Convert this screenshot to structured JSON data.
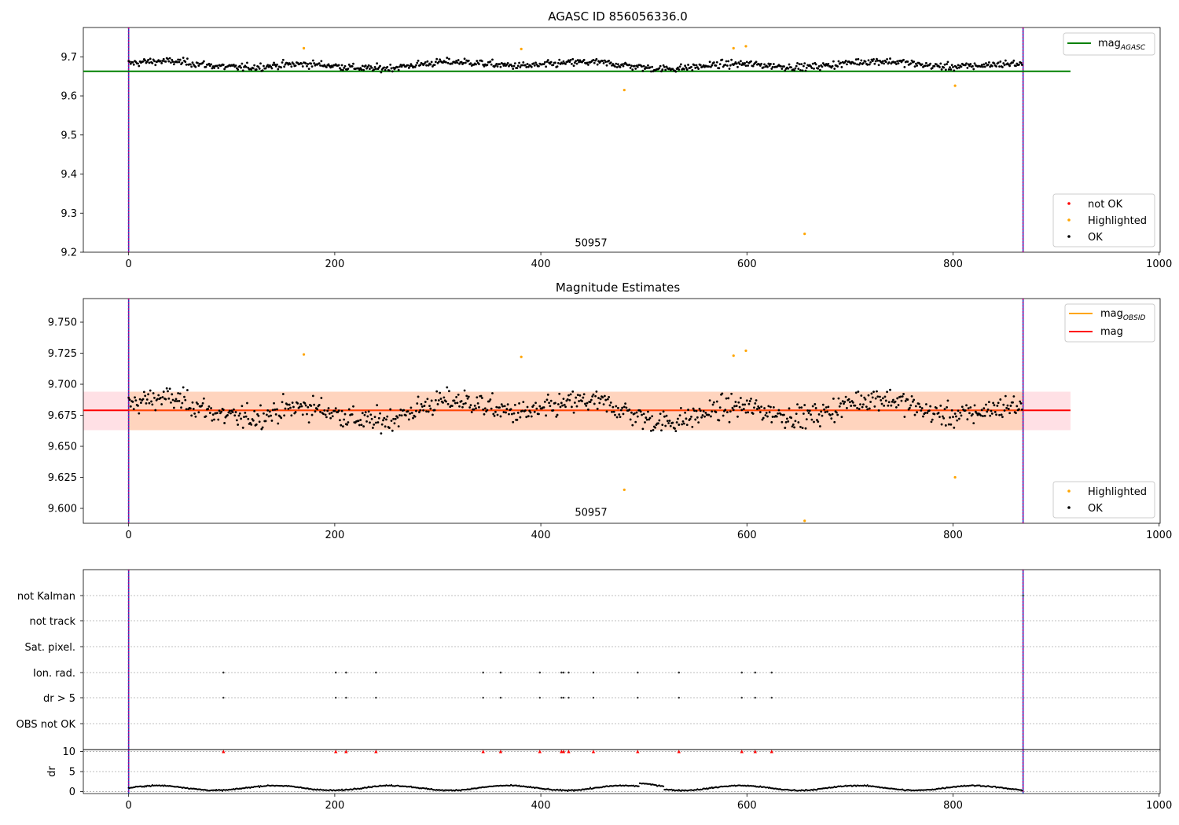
{
  "chart_data": [
    {
      "type": "scatter",
      "title": "AGASC ID 856056336.0",
      "xlim": [
        -44,
        1001
      ],
      "ylim": [
        9.2,
        9.775
      ],
      "xticks": [
        "0",
        "200",
        "400",
        "600",
        "800",
        "1000"
      ],
      "yticks": [
        "9.2",
        "9.3",
        "9.4",
        "9.5",
        "9.6",
        "9.7"
      ],
      "xtick_values": [
        0,
        200,
        400,
        600,
        800,
        1000
      ],
      "ytick_values": [
        9.2,
        9.3,
        9.4,
        9.5,
        9.6,
        9.7
      ],
      "obsid_label": "50957",
      "obsid_label_x": 433,
      "obsid_label_y": 9.215,
      "vlines": [
        0,
        868
      ],
      "mag_agasc": 9.663,
      "mag_line_x": [
        -44,
        914
      ],
      "legend_lines": [
        {
          "label": "mag",
          "sub": "AGASC",
          "color": "#008000"
        }
      ],
      "legend_points": [
        {
          "label": "not OK",
          "color": "#ff0000"
        },
        {
          "label": "Highlighted",
          "color": "#ffa500"
        },
        {
          "label": "OK",
          "color": "#000000"
        }
      ],
      "highlighted": [
        {
          "x": 170,
          "y": 9.722
        },
        {
          "x": 381,
          "y": 9.72
        },
        {
          "x": 481,
          "y": 9.615
        },
        {
          "x": 587,
          "y": 9.722
        },
        {
          "x": 599,
          "y": 9.727
        },
        {
          "x": 656,
          "y": 9.247
        },
        {
          "x": 802,
          "y": 9.626
        }
      ],
      "ok_generator": {
        "n": 868,
        "spacing": 1,
        "mean": 9.679,
        "noise": 0.012
      }
    },
    {
      "type": "scatter",
      "title": "Magnitude Estimates",
      "xlim": [
        -44,
        1001
      ],
      "ylim": [
        9.588,
        9.769
      ],
      "xticks": [
        "0",
        "200",
        "400",
        "600",
        "800",
        "1000"
      ],
      "yticks": [
        "9.600",
        "9.625",
        "9.650",
        "9.675",
        "9.700",
        "9.725",
        "9.750"
      ],
      "xtick_values": [
        0,
        200,
        400,
        600,
        800,
        1000
      ],
      "ytick_values": [
        9.6,
        9.625,
        9.65,
        9.675,
        9.7,
        9.725,
        9.75
      ],
      "obsid_label": "50957",
      "obsid_label_x": 433,
      "obsid_label_y": 9.594,
      "vlines": [
        0,
        868
      ],
      "mag": 9.679,
      "mag_obsid": 9.679,
      "band_lo": 9.663,
      "band_hi": 9.694,
      "band_x": [
        -44,
        914
      ],
      "legend_lines": [
        {
          "label": "mag",
          "sub": "OBSID",
          "color": "#ffa500"
        },
        {
          "label": "mag",
          "sub": "",
          "color": "#ff0000"
        }
      ],
      "legend_points": [
        {
          "label": "Highlighted",
          "color": "#ffa500"
        },
        {
          "label": "OK",
          "color": "#000000"
        }
      ],
      "highlighted": [
        {
          "x": 170,
          "y": 9.724
        },
        {
          "x": 381,
          "y": 9.722
        },
        {
          "x": 481,
          "y": 9.615
        },
        {
          "x": 587,
          "y": 9.723
        },
        {
          "x": 599,
          "y": 9.727
        },
        {
          "x": 656,
          "y": 9.59
        },
        {
          "x": 802,
          "y": 9.625
        }
      ]
    },
    {
      "type": "scatter",
      "flag_categories": [
        "not Kalman",
        "not track",
        "Sat. pixel.",
        "Ion. rad.",
        "dr > 5",
        "OBS not OK"
      ],
      "xlim": [
        -44,
        1001
      ],
      "xticks": [
        "0",
        "200",
        "400",
        "600",
        "800",
        "1000"
      ],
      "xtick_values": [
        0,
        200,
        400,
        600,
        800,
        1000
      ],
      "vlines": [
        0,
        868
      ],
      "flag_x": [
        92,
        201,
        211,
        240,
        344,
        361,
        399,
        420,
        422,
        427,
        451,
        494,
        534,
        595,
        608,
        624
      ],
      "not_kalman_x": [
        868
      ],
      "dr": {
        "ylabel": "dr",
        "ylim": [
          -0.5,
          10.5
        ],
        "yticks": [
          "0",
          "5",
          "10"
        ],
        "ytick_values": [
          0,
          5,
          10
        ],
        "mean": 0.9,
        "red_markers_y": 10
      }
    }
  ]
}
